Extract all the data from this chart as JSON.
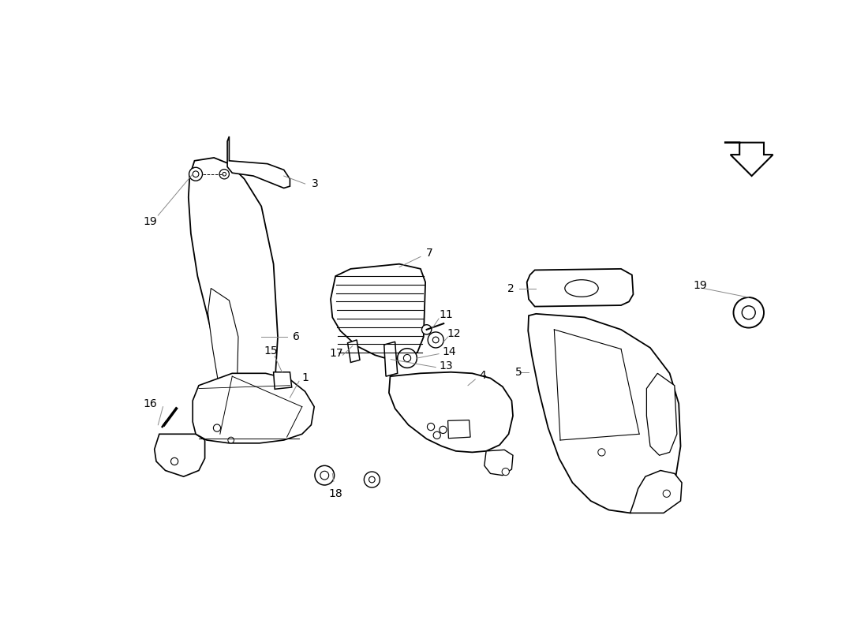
{
  "bg": "#ffffff",
  "lc": "#000000",
  "glc": "#888888",
  "fig_w": 11.0,
  "fig_h": 8.0,
  "dpi": 100
}
